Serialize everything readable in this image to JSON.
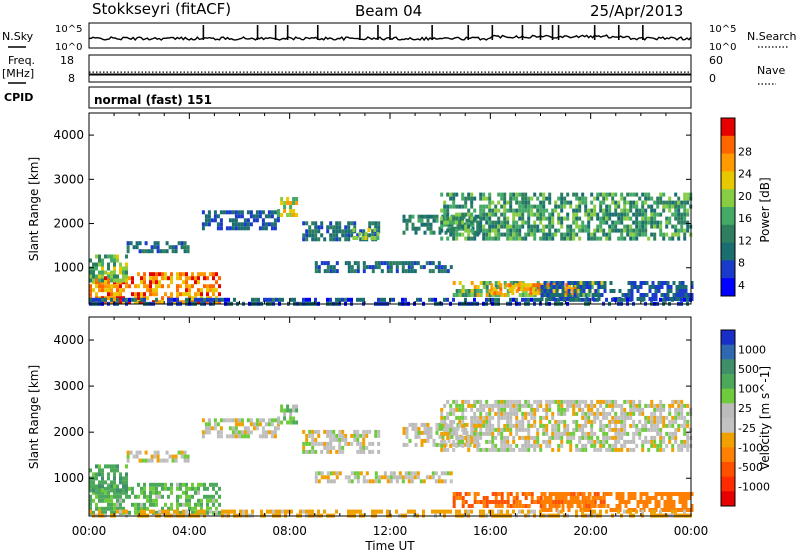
{
  "header": {
    "station": "Stokkseyri (fitACF)",
    "beam": "Beam 04",
    "date": "25/Apr/2013"
  },
  "noise_panel": {
    "left_label": "N.Sky",
    "right_label": "N.Search",
    "left_ticks": [
      "10^5",
      "10^0"
    ],
    "right_ticks": [
      "10^5",
      "10^0"
    ]
  },
  "freq_panel": {
    "left_label_top": "Freq.",
    "left_label_unit": "[MHz]",
    "right_label": "Nave",
    "left_ticks": [
      "18",
      "8"
    ],
    "right_ticks": [
      "60",
      "0"
    ],
    "freq_mhz": 10.8,
    "nave": 22
  },
  "cpid_panel": {
    "label": "CPID",
    "text": "normal (fast) 151"
  },
  "power_legend": {
    "title": "Power [dB]",
    "ticks": [
      "28",
      "24",
      "20",
      "16",
      "12",
      "8",
      "4"
    ],
    "colors": [
      "#e60000",
      "#ff6600",
      "#ff9a00",
      "#e8c800",
      "#88cc44",
      "#44aa66",
      "#2e7f60",
      "#1a6e70",
      "#1a3acc",
      "#0000ff"
    ]
  },
  "velocity_legend": {
    "title": "Velocity [m s^-1]",
    "ticks": [
      "1000",
      "500",
      "100",
      "25",
      "-25",
      "-100",
      "-500",
      "-1000"
    ],
    "colors": [
      "#1a2ec8",
      "#2f68b0",
      "#3f8f6a",
      "#4ca85a",
      "#6ecc3c",
      "#bbbbbb",
      "#c2c2c2",
      "#f0a000",
      "#ff8000",
      "#ff5000",
      "#ff2a00",
      "#e60000"
    ]
  },
  "chart_data": [
    {
      "type": "heatmap",
      "name_text": "power",
      "ylabel": "Slant Range [km]",
      "xlabel": "",
      "x_ticks": [
        "00:00",
        "04:00",
        "08:00",
        "12:00",
        "16:00",
        "20:00",
        "00:00"
      ],
      "y_ticks": [
        "1000",
        "2000",
        "3000",
        "4000"
      ],
      "xlim_hours": [
        0,
        24
      ],
      "ylim_km": [
        180,
        4500
      ],
      "features": [
        {
          "t0": 0.0,
          "t1": 5.2,
          "r0": 250,
          "r1": 900,
          "power_db": 24,
          "spread_db": 6
        },
        {
          "t0": 0.0,
          "t1": 1.5,
          "r0": 700,
          "r1": 1300,
          "power_db": 14,
          "spread_db": 5
        },
        {
          "t0": 1.5,
          "t1": 4.0,
          "r0": 1350,
          "r1": 1600,
          "power_db": 8,
          "spread_db": 3
        },
        {
          "t0": 4.5,
          "t1": 7.5,
          "r0": 1900,
          "r1": 2300,
          "power_db": 6,
          "spread_db": 3
        },
        {
          "t0": 7.5,
          "t1": 8.3,
          "r0": 2200,
          "r1": 2600,
          "power_db": 18,
          "spread_db": 6
        },
        {
          "t0": 8.5,
          "t1": 11.5,
          "r0": 1600,
          "r1": 2050,
          "power_db": 8,
          "spread_db": 3
        },
        {
          "t0": 10.5,
          "t1": 11.5,
          "r0": 1700,
          "r1": 1900,
          "power_db": 16,
          "spread_db": 4
        },
        {
          "t0": 9.0,
          "t1": 14.5,
          "r0": 950,
          "r1": 1150,
          "power_db": 8,
          "spread_db": 3
        },
        {
          "t0": 12.5,
          "t1": 15.5,
          "r0": 1750,
          "r1": 2200,
          "power_db": 10,
          "spread_db": 4
        },
        {
          "t0": 14.0,
          "t1": 24.0,
          "r0": 1650,
          "r1": 2700,
          "power_db": 12,
          "spread_db": 5
        },
        {
          "t0": 14.5,
          "t1": 20.5,
          "r0": 400,
          "r1": 700,
          "power_db": 16,
          "spread_db": 6
        },
        {
          "t0": 16.0,
          "t1": 19.5,
          "r0": 450,
          "r1": 650,
          "power_db": 22,
          "spread_db": 4
        },
        {
          "t0": 18.0,
          "t1": 24.0,
          "r0": 300,
          "r1": 700,
          "power_db": 6,
          "spread_db": 3
        },
        {
          "t0": 0.0,
          "t1": 24.0,
          "r0": 200,
          "r1": 320,
          "power_db": 6,
          "spread_db": 4
        }
      ]
    },
    {
      "type": "heatmap",
      "name_text": "velocity",
      "ylabel": "Slant Range [km]",
      "xlabel": "Time UT",
      "x_ticks": [
        "00:00",
        "04:00",
        "08:00",
        "12:00",
        "16:00",
        "20:00",
        "00:00"
      ],
      "y_ticks": [
        "1000",
        "2000",
        "3000",
        "4000"
      ],
      "xlim_hours": [
        0,
        24
      ],
      "ylim_km": [
        180,
        4500
      ],
      "features": [
        {
          "t0": 0.0,
          "t1": 5.2,
          "r0": 250,
          "r1": 900,
          "velocity": 60
        },
        {
          "t0": 0.0,
          "t1": 1.5,
          "r0": 700,
          "r1": 1300,
          "velocity": 80
        },
        {
          "t0": 1.5,
          "t1": 4.0,
          "r0": 1350,
          "r1": 1600,
          "velocity": 0
        },
        {
          "t0": 4.5,
          "t1": 7.5,
          "r0": 1900,
          "r1": 2300,
          "velocity": 0
        },
        {
          "t0": 7.5,
          "t1": 8.3,
          "r0": 2200,
          "r1": 2600,
          "velocity": 40
        },
        {
          "t0": 8.5,
          "t1": 11.5,
          "r0": 1600,
          "r1": 2050,
          "velocity": 0
        },
        {
          "t0": 9.0,
          "t1": 14.5,
          "r0": 950,
          "r1": 1150,
          "velocity": 0
        },
        {
          "t0": 12.5,
          "t1": 15.5,
          "r0": 1750,
          "r1": 2200,
          "velocity": 0
        },
        {
          "t0": 14.0,
          "t1": 24.0,
          "r0": 1650,
          "r1": 2700,
          "velocity": 0
        },
        {
          "t0": 14.5,
          "t1": 20.5,
          "r0": 400,
          "r1": 700,
          "velocity": -300
        },
        {
          "t0": 18.0,
          "t1": 24.0,
          "r0": 300,
          "r1": 700,
          "velocity": -150
        },
        {
          "t0": 0.0,
          "t1": 24.0,
          "r0": 200,
          "r1": 320,
          "velocity": -50
        }
      ]
    }
  ]
}
